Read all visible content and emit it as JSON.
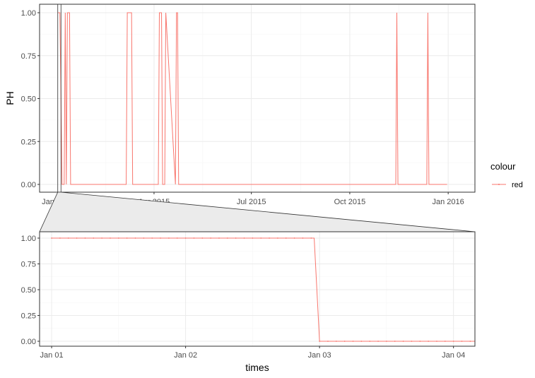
{
  "colors": {
    "series": "#F8766D",
    "panel_border": "#333333",
    "grid_major": "#EBEBEB",
    "grid_minor": "#F5F5F5",
    "zoom_fill": "#EBEBEB",
    "text": "#4D4D4D"
  },
  "legend": {
    "title": "colour",
    "label": "red"
  },
  "chart_data": [
    {
      "type": "line",
      "panel": "overview",
      "ylabel": "PH",
      "xlabel": "",
      "xlim": [
        "2014-12-15",
        "2016-01-26"
      ],
      "ylim": [
        0,
        1
      ],
      "x_ticks": [
        {
          "date": "2015-01-01",
          "label": "Jan 2015"
        },
        {
          "date": "2015-04-01",
          "label": "Apr 2015"
        },
        {
          "date": "2015-07-01",
          "label": "Jul 2015"
        },
        {
          "date": "2015-10-01",
          "label": "Oct 2015"
        },
        {
          "date": "2016-01-01",
          "label": "Jan 2016"
        }
      ],
      "y_ticks": [
        "0.00",
        "0.25",
        "0.50",
        "0.75",
        "1.00"
      ],
      "zoom_window": [
        "2015-01-01",
        "2015-01-04"
      ],
      "series": [
        {
          "name": "red",
          "x": [
            "2015-01-01",
            "2015-01-03",
            "2015-01-05",
            "2015-01-07",
            "2015-01-08",
            "2015-01-09",
            "2015-01-10",
            "2015-01-12",
            "2015-01-13",
            "2015-03-06",
            "2015-03-07",
            "2015-03-11",
            "2015-03-12",
            "2015-04-05",
            "2015-04-06",
            "2015-04-08",
            "2015-04-09",
            "2015-04-11",
            "2015-04-12",
            "2015-04-21",
            "2015-04-22",
            "2015-04-23",
            "2015-04-24",
            "2015-11-13",
            "2015-11-14",
            "2015-11-15",
            "2015-12-12",
            "2015-12-13",
            "2015-12-14",
            "2015-12-31"
          ],
          "y": [
            1,
            1,
            0,
            0,
            1,
            0,
            1,
            1,
            0,
            0,
            1,
            1,
            0,
            0,
            1,
            1,
            0,
            0,
            1,
            0,
            1,
            1,
            0,
            0,
            1,
            0,
            0,
            1,
            0,
            0
          ]
        }
      ]
    },
    {
      "type": "line",
      "panel": "zoom",
      "ylabel": "",
      "xlabel": "times",
      "xlim": [
        -0.09,
        3.16
      ],
      "ylim": [
        0,
        1
      ],
      "x_ticks": [
        {
          "day": 0,
          "label": "Jan 01"
        },
        {
          "day": 1,
          "label": "Jan 02"
        },
        {
          "day": 2,
          "label": "Jan 03"
        },
        {
          "day": 3,
          "label": "Jan 04"
        }
      ],
      "y_ticks": [
        "0.00",
        "0.25",
        "0.50",
        "0.75",
        "1.00"
      ],
      "series": [
        {
          "name": "red",
          "x": [
            0,
            1.96,
            2.0,
            3.16
          ],
          "y": [
            1,
            1,
            0,
            0
          ],
          "sample_interval_days": 0.0625
        }
      ]
    }
  ]
}
